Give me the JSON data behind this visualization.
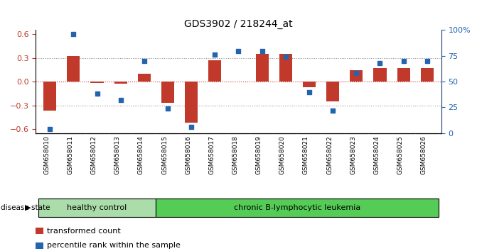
{
  "title": "GDS3902 / 218244_at",
  "samples": [
    "GSM658010",
    "GSM658011",
    "GSM658012",
    "GSM658013",
    "GSM658014",
    "GSM658015",
    "GSM658016",
    "GSM658017",
    "GSM658018",
    "GSM658019",
    "GSM658020",
    "GSM658021",
    "GSM658022",
    "GSM658023",
    "GSM658024",
    "GSM658025",
    "GSM658026"
  ],
  "bar_values": [
    -0.37,
    0.32,
    -0.02,
    -0.03,
    0.1,
    -0.27,
    -0.52,
    0.27,
    0.0,
    0.35,
    0.35,
    -0.07,
    -0.25,
    0.14,
    0.17,
    0.17,
    0.17
  ],
  "dot_values": [
    4,
    96,
    38,
    32,
    70,
    24,
    6,
    76,
    80,
    80,
    74,
    40,
    22,
    58,
    68,
    70,
    70
  ],
  "ylim_left": [
    -0.65,
    0.65
  ],
  "ylim_right": [
    0,
    100
  ],
  "yticks_left": [
    -0.6,
    -0.3,
    0.0,
    0.3,
    0.6
  ],
  "yticks_right": [
    0,
    25,
    50,
    75,
    100
  ],
  "yticklabels_right": [
    "0",
    "25",
    "50",
    "75",
    "100%"
  ],
  "bar_color": "#c0392b",
  "dot_color": "#2463ae",
  "healthy_control_count": 5,
  "disease_state_label": "disease state",
  "group1_label": "healthy control",
  "group2_label": "chronic B-lymphocytic leukemia",
  "legend_bar_label": "transformed count",
  "legend_dot_label": "percentile rank within the sample",
  "group1_color": "#aaddaa",
  "group2_color": "#55cc55",
  "xlabels_bg": "#d8d8d8",
  "bg_color": "#ffffff",
  "title_fontsize": 10,
  "tick_fontsize": 8
}
